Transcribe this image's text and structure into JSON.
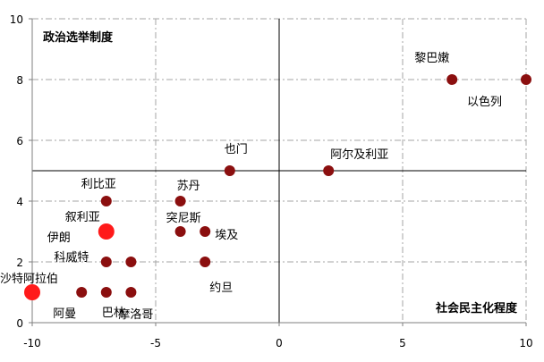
{
  "chart_data": {
    "type": "scatter",
    "xlim": [
      -10,
      10
    ],
    "ylim": [
      0,
      10
    ],
    "x_ticks": [
      "-10",
      "-5",
      "0",
      "5",
      "10"
    ],
    "y_ticks": [
      "0",
      "2",
      "4",
      "6",
      "8",
      "10"
    ],
    "grid": "dash-dot",
    "reference_lines": {
      "x": 0,
      "y": 5
    },
    "corner_label_top_left": "政治选举制度",
    "corner_label_bottom_right": "社会民主化程度",
    "colors": {
      "normal": "#8b0f0f",
      "highlight": "#ff1a1a"
    },
    "points": [
      {
        "label": "黎巴嫩",
        "x": 7,
        "y": 8,
        "highlight": false
      },
      {
        "label": "以色列",
        "x": 10,
        "y": 8,
        "highlight": false
      },
      {
        "label": "也门",
        "x": -2,
        "y": 5,
        "highlight": false
      },
      {
        "label": "阿尔及利亚",
        "x": 2,
        "y": 5,
        "highlight": false
      },
      {
        "label": "利比亚",
        "x": -7,
        "y": 4,
        "highlight": false
      },
      {
        "label": "苏丹",
        "x": -4,
        "y": 4,
        "highlight": false
      },
      {
        "label": "叙利亚",
        "x": -7,
        "y": 3,
        "highlight": true
      },
      {
        "label": "突尼斯",
        "x": -4,
        "y": 3,
        "highlight": false
      },
      {
        "label": "埃及",
        "x": -3,
        "y": 3,
        "highlight": false
      },
      {
        "label": "伊朗",
        "x": -7,
        "y": 2,
        "highlight": false
      },
      {
        "label": "科威特",
        "x": -6,
        "y": 2,
        "highlight": false
      },
      {
        "label": "约旦",
        "x": -3,
        "y": 2,
        "highlight": false
      },
      {
        "label": "沙特阿拉伯",
        "x": -10,
        "y": 1,
        "highlight": true
      },
      {
        "label": "阿曼",
        "x": -8,
        "y": 1,
        "highlight": false
      },
      {
        "label": "巴林",
        "x": -7,
        "y": 1,
        "highlight": false
      },
      {
        "label": "摩洛哥",
        "x": -6,
        "y": 1,
        "highlight": false
      }
    ]
  }
}
